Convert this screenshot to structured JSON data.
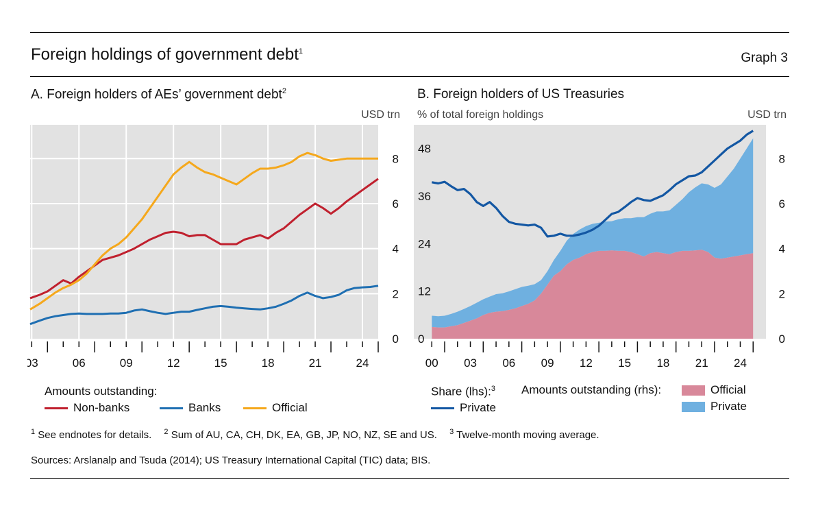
{
  "header": {
    "title": "Foreign holdings of government debt",
    "title_sup": "1",
    "graph_label": "Graph 3"
  },
  "panelA": {
    "title": "A. Foreign holders of AEs’ government debt",
    "title_sup": "2",
    "unit_right": "USD trn",
    "legend_heading": "Amounts outstanding:",
    "legend": [
      "Non-banks",
      "Banks",
      "Official"
    ]
  },
  "panelB": {
    "title": "B. Foreign holders of US Treasuries",
    "unit_left": "% of total foreign holdings",
    "unit_right": "USD trn",
    "legend_share_heading": "Share (lhs):",
    "legend_share_sup": "3",
    "legend_share_item": "Private",
    "legend_amounts_heading": "Amounts outstanding (rhs):",
    "legend_amounts_items": [
      "Official",
      "Private"
    ]
  },
  "footnotes": {
    "n1_mark": "1",
    "n1": "See endnotes for details.",
    "n2_mark": "2",
    "n2": "Sum of AU, CA, CH, DK, EA, GB, JP, NO, NZ, SE and US.",
    "n3_mark": "3",
    "n3": "Twelve-month moving average.",
    "sources": "Sources: Arslanalp and Tsuda (2014); US Treasury International Capital (TIC) data; BIS."
  },
  "colors": {
    "nonbanks": "#c0202e",
    "banks": "#1f6fb2",
    "official_line": "#f5a81c",
    "official_area": "#d8889a",
    "private_area": "#6fb0e0",
    "share_line": "#1357a3",
    "plot_bg": "#e2e2e2"
  },
  "chart_data": [
    {
      "type": "line",
      "title": "A. Foreign holders of AEs’ government debt",
      "ylabel_right": "USD trn",
      "x_ticks": [
        "03",
        "06",
        "09",
        "12",
        "15",
        "18",
        "21",
        "24"
      ],
      "x_range": [
        2002.9,
        2025.0
      ],
      "ylim": [
        0,
        9.5
      ],
      "y_ticks": [
        0,
        2,
        4,
        6,
        8
      ],
      "grid": true,
      "legend_placement": "bottom",
      "x": [
        2002.9,
        2003.5,
        2004.0,
        2004.5,
        2005.0,
        2005.5,
        2006.0,
        2006.5,
        2007.0,
        2007.5,
        2008.0,
        2008.5,
        2009.0,
        2009.5,
        2010.0,
        2010.5,
        2011.0,
        2011.5,
        2012.0,
        2012.5,
        2013.0,
        2013.5,
        2014.0,
        2014.5,
        2015.0,
        2015.5,
        2016.0,
        2016.5,
        2017.0,
        2017.5,
        2018.0,
        2018.5,
        2019.0,
        2019.5,
        2020.0,
        2020.5,
        2021.0,
        2021.5,
        2022.0,
        2022.5,
        2023.0,
        2023.5,
        2024.0,
        2024.5,
        2025.0
      ],
      "series": [
        {
          "name": "Non-banks",
          "values": [
            1.8,
            1.95,
            2.1,
            2.35,
            2.6,
            2.45,
            2.75,
            3.0,
            3.25,
            3.5,
            3.6,
            3.7,
            3.85,
            4.0,
            4.2,
            4.4,
            4.55,
            4.7,
            4.75,
            4.7,
            4.55,
            4.6,
            4.6,
            4.4,
            4.2,
            4.2,
            4.2,
            4.4,
            4.5,
            4.6,
            4.45,
            4.7,
            4.9,
            5.2,
            5.5,
            5.75,
            6.0,
            5.8,
            5.55,
            5.8,
            6.1,
            6.35,
            6.6,
            6.85,
            7.1
          ]
        },
        {
          "name": "Banks",
          "values": [
            0.65,
            0.8,
            0.92,
            1.0,
            1.05,
            1.1,
            1.12,
            1.1,
            1.1,
            1.1,
            1.12,
            1.12,
            1.15,
            1.25,
            1.3,
            1.22,
            1.15,
            1.1,
            1.15,
            1.2,
            1.2,
            1.28,
            1.35,
            1.42,
            1.45,
            1.42,
            1.38,
            1.35,
            1.32,
            1.3,
            1.35,
            1.42,
            1.55,
            1.7,
            1.9,
            2.05,
            1.9,
            1.8,
            1.85,
            1.95,
            2.15,
            2.25,
            2.28,
            2.3,
            2.35
          ]
        },
        {
          "name": "Official",
          "values": [
            1.3,
            1.55,
            1.8,
            2.05,
            2.25,
            2.4,
            2.6,
            2.9,
            3.3,
            3.7,
            4.0,
            4.2,
            4.5,
            4.9,
            5.3,
            5.8,
            6.3,
            6.8,
            7.3,
            7.6,
            7.85,
            7.6,
            7.4,
            7.3,
            7.15,
            7.0,
            6.85,
            7.1,
            7.35,
            7.55,
            7.55,
            7.6,
            7.7,
            7.85,
            8.1,
            8.25,
            8.15,
            8.0,
            7.9,
            7.95,
            8.0,
            8.0,
            8.0,
            8.0,
            8.0
          ]
        }
      ]
    },
    {
      "type": "area",
      "title": "B. Foreign holders of US Treasuries",
      "ylabel_left": "% of total foreign holdings",
      "ylabel_right": "USD trn",
      "x_ticks": [
        "00",
        "03",
        "06",
        "09",
        "12",
        "15",
        "18",
        "21",
        "24"
      ],
      "x_range": [
        1998.6,
        2026.0
      ],
      "ylim_left": [
        0,
        54
      ],
      "y_ticks_left": [
        0,
        12,
        24,
        36,
        48
      ],
      "ylim_right": [
        0,
        9.5
      ],
      "y_ticks_right": [
        0,
        2,
        4,
        6,
        8
      ],
      "grid": false,
      "legend_placement": "bottom",
      "x": [
        2000.0,
        2000.5,
        2001.0,
        2001.5,
        2002.0,
        2002.5,
        2003.0,
        2003.5,
        2004.0,
        2004.5,
        2005.0,
        2005.5,
        2006.0,
        2006.5,
        2007.0,
        2007.5,
        2008.0,
        2008.5,
        2009.0,
        2009.5,
        2010.0,
        2010.5,
        2011.0,
        2011.5,
        2012.0,
        2012.5,
        2013.0,
        2013.5,
        2014.0,
        2014.5,
        2015.0,
        2015.5,
        2016.0,
        2016.5,
        2017.0,
        2017.5,
        2018.0,
        2018.5,
        2019.0,
        2019.5,
        2020.0,
        2020.5,
        2021.0,
        2021.5,
        2022.0,
        2022.5,
        2023.0,
        2023.5,
        2024.0,
        2024.5,
        2025.0
      ],
      "series": [
        {
          "name": "Official",
          "axis": "rhs",
          "values": [
            0.52,
            0.5,
            0.5,
            0.55,
            0.6,
            0.7,
            0.8,
            0.9,
            1.05,
            1.15,
            1.2,
            1.22,
            1.28,
            1.35,
            1.45,
            1.55,
            1.7,
            2.0,
            2.4,
            2.8,
            3.0,
            3.3,
            3.5,
            3.6,
            3.75,
            3.85,
            3.9,
            3.9,
            3.92,
            3.9,
            3.9,
            3.85,
            3.75,
            3.65,
            3.8,
            3.85,
            3.8,
            3.75,
            3.85,
            3.9,
            3.9,
            3.92,
            3.95,
            3.85,
            3.6,
            3.55,
            3.6,
            3.65,
            3.7,
            3.75,
            3.8
          ]
        },
        {
          "name": "Private",
          "axis": "rhs",
          "values": [
            0.5,
            0.5,
            0.52,
            0.55,
            0.6,
            0.62,
            0.65,
            0.7,
            0.7,
            0.72,
            0.78,
            0.8,
            0.82,
            0.85,
            0.85,
            0.8,
            0.72,
            0.6,
            0.6,
            0.7,
            0.9,
            1.05,
            1.15,
            1.25,
            1.25,
            1.25,
            1.25,
            1.3,
            1.3,
            1.4,
            1.45,
            1.5,
            1.65,
            1.75,
            1.75,
            1.8,
            1.85,
            1.95,
            2.1,
            2.3,
            2.6,
            2.8,
            2.95,
            3.0,
            3.1,
            3.3,
            3.6,
            3.9,
            4.3,
            4.7,
            5.1
          ]
        },
        {
          "name": "Private",
          "axis": "lhs",
          "kind": "share",
          "values": [
            39.5,
            39.2,
            39.6,
            38.5,
            37.5,
            37.8,
            36.5,
            34.5,
            33.5,
            34.5,
            33.0,
            31.0,
            29.5,
            29.0,
            28.8,
            28.6,
            28.8,
            28.0,
            25.8,
            26.0,
            26.5,
            26.0,
            26.0,
            26.3,
            26.8,
            27.5,
            28.5,
            30.0,
            31.5,
            32.0,
            33.2,
            34.5,
            35.5,
            35.0,
            34.8,
            35.5,
            36.2,
            37.5,
            39.0,
            40.0,
            41.0,
            41.2,
            42.0,
            43.5,
            45.0,
            46.5,
            48.0,
            49.0,
            50.0,
            51.5,
            52.5
          ]
        }
      ]
    }
  ]
}
